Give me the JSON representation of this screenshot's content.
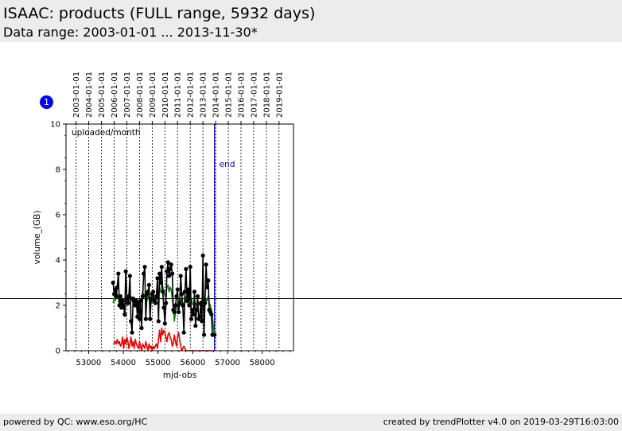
{
  "header": {
    "title": "ISAAC: products (FULL range, 5932 days)",
    "subtitle": "Data range: 2003-01-01 ... 2013-11-30*"
  },
  "badge": {
    "label": "1",
    "color": "#0000ee"
  },
  "footer": {
    "left": "powered by QC: www.eso.org/HC",
    "right": "created by trendPlotter v4.0 on 2019-03-29T16:03:00"
  },
  "chart_data": {
    "type": "line",
    "xlabel": "mjd-obs",
    "ylabel": "volume_(GB)",
    "xlim": [
      52350,
      58900
    ],
    "ylim": [
      0,
      10
    ],
    "x_ticks": [
      53000,
      54000,
      55000,
      56000,
      57000,
      58000
    ],
    "x_tick_labels": [
      "53000",
      "54000",
      "55000",
      "56000",
      "57000",
      "58000"
    ],
    "y_ticks": [
      0,
      2,
      4,
      6,
      8,
      10
    ],
    "y_tick_labels": [
      "0",
      "2",
      "4",
      "6",
      "8",
      "10"
    ],
    "top_axis": {
      "ticks": [
        52640,
        53005,
        53371,
        53736,
        54101,
        54466,
        54832,
        55197,
        55562,
        55927,
        56293,
        56658,
        57023,
        57388,
        57754,
        58119,
        58484
      ],
      "labels": [
        "2003-01-01",
        "2004-01-01",
        "2005-01-01",
        "2006-01-01",
        "2007-01-01",
        "2008-01-01",
        "2009-01-01",
        "2010-01-01",
        "2011-01-01",
        "2012-01-01",
        "2013-01-01",
        "2014-01-01",
        "2015-01-01",
        "2016-01-01",
        "2017-01-01",
        "2018-01-01",
        "2019-01-01"
      ]
    },
    "annotations": {
      "box_label": "uploaded/month",
      "end_label": "end"
    },
    "reference_line_y": 2.3,
    "end_mjd": 56626,
    "colors": {
      "black": "#000000",
      "green": "#008000",
      "red": "#ee0000",
      "end": "#0000aa"
    },
    "series": [
      {
        "color": "black",
        "markers": true,
        "x": [
          53705,
          53736,
          53765,
          53796,
          53826,
          53857,
          53887,
          53918,
          53949,
          53979,
          54010,
          54040,
          54071,
          54101,
          54132,
          54160,
          54191,
          54221,
          54252,
          54282,
          54313,
          54344,
          54374,
          54405,
          54435,
          54466,
          54497,
          54526,
          54557,
          54587,
          54618,
          54648,
          54679,
          54710,
          54740,
          54771,
          54801,
          54832,
          54863,
          54891,
          54922,
          54952,
          54983,
          55013,
          55044,
          55075,
          55105,
          55136,
          55166,
          55197,
          55228,
          55256,
          55287,
          55317,
          55348,
          55378,
          55409,
          55440,
          55470,
          55501,
          55531,
          55562,
          55593,
          55621,
          55652,
          55682,
          55713,
          55743,
          55774,
          55805,
          55835,
          55866,
          55896,
          55927,
          55958,
          55987,
          56018,
          56048,
          56079,
          56109,
          56140,
          56171,
          56201,
          56232,
          56262,
          56293,
          56324,
          56352,
          56383,
          56413,
          56444,
          56474,
          56505,
          56536,
          56566,
          56597,
          56626
        ],
        "y": [
          3.0,
          2.5,
          2.7,
          2.4,
          2.8,
          3.4,
          2.0,
          2.4,
          1.9,
          2.2,
          2.0,
          1.6,
          3.5,
          2.3,
          2.1,
          2.4,
          3.3,
          1.3,
          0.8,
          2.3,
          2.2,
          2.0,
          2.2,
          1.5,
          2.1,
          1.4,
          2.2,
          1.0,
          2.4,
          3.4,
          3.7,
          1.4,
          2.5,
          2.6,
          2.9,
          1.4,
          2.3,
          2.5,
          2.6,
          2.2,
          2.1,
          2.4,
          3.2,
          1.3,
          3.4,
          3.0,
          3.7,
          2.6,
          1.9,
          1.2,
          2.1,
          3.5,
          3.9,
          3.3,
          3.6,
          3.8,
          3.4,
          1.8,
          1.7,
          2.0,
          2.4,
          2.7,
          1.7,
          2.1,
          3.3,
          2.5,
          2.0,
          0.8,
          2.6,
          3.6,
          2.2,
          2.7,
          2.0,
          3.7,
          1.4,
          1.8,
          1.6,
          2.6,
          1.1,
          1.8,
          2.4,
          1.4,
          1.5,
          2.1,
          1.3,
          4.2,
          0.7,
          2.1,
          3.8,
          2.8,
          3.1,
          1.8,
          1.7,
          1.6,
          0.7,
          0.7,
          0.7
        ]
      },
      {
        "color": "green",
        "markers": false,
        "x": [
          53705,
          53736,
          53765,
          53796,
          53826,
          53857,
          53887,
          53918,
          53949,
          53979,
          54010,
          54040,
          54071,
          54101,
          54132,
          54160,
          54191,
          54221,
          54252,
          54282,
          54313,
          54344,
          54374,
          54405,
          54435,
          54466,
          54497,
          54526,
          54557,
          54587,
          54618,
          54648,
          54679,
          54710,
          54740,
          54771,
          54801,
          54832,
          54863,
          54891,
          54922,
          54952,
          54983,
          55013,
          55044,
          55075,
          55105,
          55136,
          55166,
          55197,
          55228,
          55256,
          55287,
          55317,
          55348,
          55378,
          55409,
          55440,
          55470,
          55501,
          55531,
          55562,
          55593,
          55621,
          55652,
          55682,
          55713,
          55743,
          55774,
          55805,
          55835,
          55866,
          55896,
          55927,
          55958,
          55987,
          56018,
          56048,
          56079,
          56109,
          56140,
          56171,
          56201,
          56232,
          56262,
          56293,
          56324,
          56352,
          56383,
          56413,
          56444,
          56474,
          56505,
          56536,
          56566,
          56597,
          56626
        ],
        "y": [
          2.1,
          2.3,
          2.2,
          2.4,
          2.5,
          2.3,
          2.0,
          2.2,
          1.9,
          2.1,
          2.0,
          1.5,
          2.2,
          2.1,
          2.0,
          2.2,
          2.3,
          2.4,
          2.2,
          2.1,
          2.0,
          2.2,
          2.1,
          1.9,
          2.2,
          2.0,
          2.1,
          2.3,
          2.6,
          2.4,
          2.5,
          2.3,
          2.2,
          2.4,
          2.3,
          2.0,
          2.1,
          2.2,
          2.4,
          2.2,
          2.1,
          2.3,
          2.5,
          2.4,
          2.6,
          2.7,
          2.9,
          2.8,
          2.6,
          2.4,
          2.5,
          2.8,
          2.9,
          2.6,
          2.8,
          2.7,
          2.3,
          1.9,
          1.3,
          1.7,
          1.9,
          2.1,
          1.8,
          2.0,
          2.3,
          2.2,
          2.1,
          2.0,
          2.2,
          2.4,
          2.1,
          2.3,
          2.2,
          2.4,
          2.3,
          2.1,
          2.0,
          2.2,
          2.1,
          2.0,
          2.2,
          2.1,
          2.0,
          2.2,
          2.1,
          2.3,
          2.2,
          2.1,
          2.3,
          2.2,
          2.4,
          2.1,
          2.0,
          1.8,
          1.5,
          1.0,
          0.7
        ]
      },
      {
        "color": "red",
        "markers": false,
        "x": [
          53705,
          53736,
          53765,
          53796,
          53826,
          53857,
          53887,
          53918,
          53949,
          53979,
          54010,
          54040,
          54071,
          54101,
          54132,
          54160,
          54191,
          54221,
          54252,
          54282,
          54313,
          54344,
          54374,
          54405,
          54435,
          54466,
          54497,
          54526,
          54557,
          54587,
          54618,
          54648,
          54679,
          54710,
          54740,
          54771,
          54801,
          54832,
          54863,
          54891,
          54922,
          54952,
          54983,
          55013,
          55044,
          55075,
          55105,
          55136,
          55166,
          55197,
          55228,
          55256,
          55287,
          55317,
          55348,
          55378,
          55409,
          55440,
          55470,
          55501,
          55531,
          55562,
          55593,
          55621,
          55652,
          55682,
          55713,
          55743,
          55774,
          55805,
          55835,
          55866,
          55896,
          55927,
          55958,
          56626
        ],
        "y": [
          0.3,
          0.3,
          0.4,
          0.3,
          0.5,
          0.3,
          0.4,
          0.2,
          0.3,
          0.6,
          0.1,
          0.5,
          0.3,
          0.6,
          0.4,
          0.1,
          0.3,
          0.6,
          0.2,
          0.4,
          0.1,
          0.5,
          0.3,
          0.2,
          0.1,
          0.4,
          0.2,
          0.0,
          0.3,
          0.2,
          0.1,
          0.4,
          0.2,
          0.0,
          0.3,
          0.1,
          0.2,
          0.0,
          0.2,
          0.1,
          0.2,
          0.3,
          0.1,
          0.5,
          0.9,
          0.4,
          1.0,
          0.7,
          0.9,
          0.8,
          0.6,
          0.4,
          0.7,
          0.8,
          0.6,
          0.5,
          0.2,
          0.3,
          0.7,
          0.4,
          0.2,
          0.6,
          0.8,
          0.5,
          0.2,
          0.0,
          0.1,
          0.2,
          0.1,
          0.0,
          0.0,
          0.0,
          0.0,
          0.0,
          0.0,
          0.0
        ]
      }
    ]
  }
}
